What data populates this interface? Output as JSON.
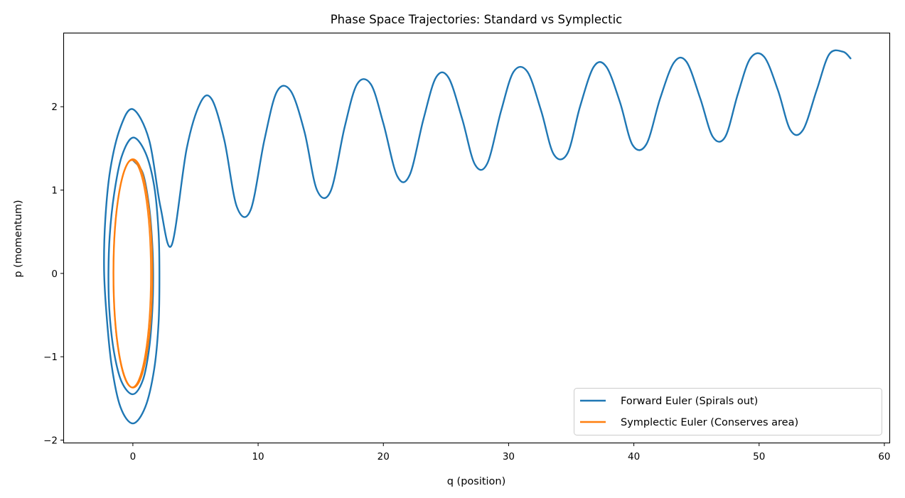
{
  "chart_data": {
    "type": "line",
    "title": "Phase Space Trajectories: Standard vs Symplectic",
    "xlabel": "q (position)",
    "ylabel": "p (momentum)",
    "xlim": [
      -5.5,
      60.4
    ],
    "ylim": [
      -2.03,
      2.88
    ],
    "xticks": [
      0,
      10,
      20,
      30,
      40,
      50,
      60
    ],
    "xtick_labels": [
      "0",
      "10",
      "20",
      "30",
      "40",
      "50",
      "60"
    ],
    "yticks": [
      -2,
      -1,
      0,
      1,
      2
    ],
    "ytick_labels": [
      "−2",
      "−1",
      "0",
      "1",
      "2"
    ],
    "grid": false,
    "legend_position": "lower-right",
    "series": [
      {
        "name": "Forward Euler (Spirals out)",
        "color": "#1f77b4",
        "q": [
          0.0,
          0.8,
          1.3,
          1.55,
          1.62,
          1.55,
          1.3,
          0.8,
          0.0,
          -0.9,
          -1.5,
          -1.85,
          -1.95,
          -1.85,
          -1.5,
          -0.9,
          0.0,
          1.0,
          1.7,
          2.05,
          2.12,
          2.05,
          1.7,
          1.0,
          0.0,
          -1.0,
          -1.7,
          -2.1,
          -2.3,
          -2.2,
          -1.8,
          -1.0,
          0.0,
          1.3,
          2.2,
          3.1,
          4.3,
          5.4,
          6.3,
          7.3,
          8.3,
          9.4,
          10.5,
          11.5,
          12.6,
          13.7,
          14.7,
          15.8,
          16.9,
          17.9,
          19.0,
          20.0,
          21.1,
          22.1,
          23.2,
          24.2,
          25.2,
          26.3,
          27.3,
          28.3,
          29.4,
          30.4,
          31.5,
          32.6,
          33.6,
          34.7,
          35.7,
          36.8,
          37.8,
          38.9,
          39.9,
          41.0,
          42.1,
          43.2,
          44.2,
          45.3,
          46.3,
          47.3,
          48.3,
          49.3,
          50.4,
          51.5,
          52.5,
          53.5,
          54.6,
          55.6,
          56.7,
          57.3
        ],
        "p": [
          1.36,
          1.2,
          0.8,
          0.35,
          -0.05,
          -0.45,
          -0.9,
          -1.28,
          -1.45,
          -1.3,
          -0.95,
          -0.5,
          -0.05,
          0.45,
          0.95,
          1.4,
          1.63,
          1.45,
          1.05,
          0.5,
          -0.05,
          -0.6,
          -1.15,
          -1.6,
          -1.8,
          -1.6,
          -1.1,
          -0.5,
          0.05,
          0.65,
          1.25,
          1.75,
          1.97,
          1.6,
          0.8,
          0.34,
          1.5,
          2.05,
          2.09,
          1.6,
          0.8,
          0.76,
          1.6,
          2.18,
          2.19,
          1.7,
          1.0,
          0.99,
          1.75,
          2.27,
          2.27,
          1.8,
          1.17,
          1.18,
          1.85,
          2.35,
          2.35,
          1.85,
          1.31,
          1.32,
          1.95,
          2.42,
          2.42,
          1.95,
          1.43,
          1.44,
          2.0,
          2.48,
          2.48,
          2.05,
          1.54,
          1.55,
          2.1,
          2.53,
          2.54,
          2.1,
          1.64,
          1.64,
          2.15,
          2.58,
          2.6,
          2.2,
          1.72,
          1.72,
          2.2,
          2.63,
          2.66,
          2.58
        ]
      },
      {
        "name": "Symplectic Euler (Conserves area)",
        "color": "#ff7f0e",
        "shape": "ellipse",
        "q_center": 0.0,
        "p_center": 0.0,
        "q_amplitude": 1.55,
        "p_amplitude": 1.37
      }
    ]
  }
}
